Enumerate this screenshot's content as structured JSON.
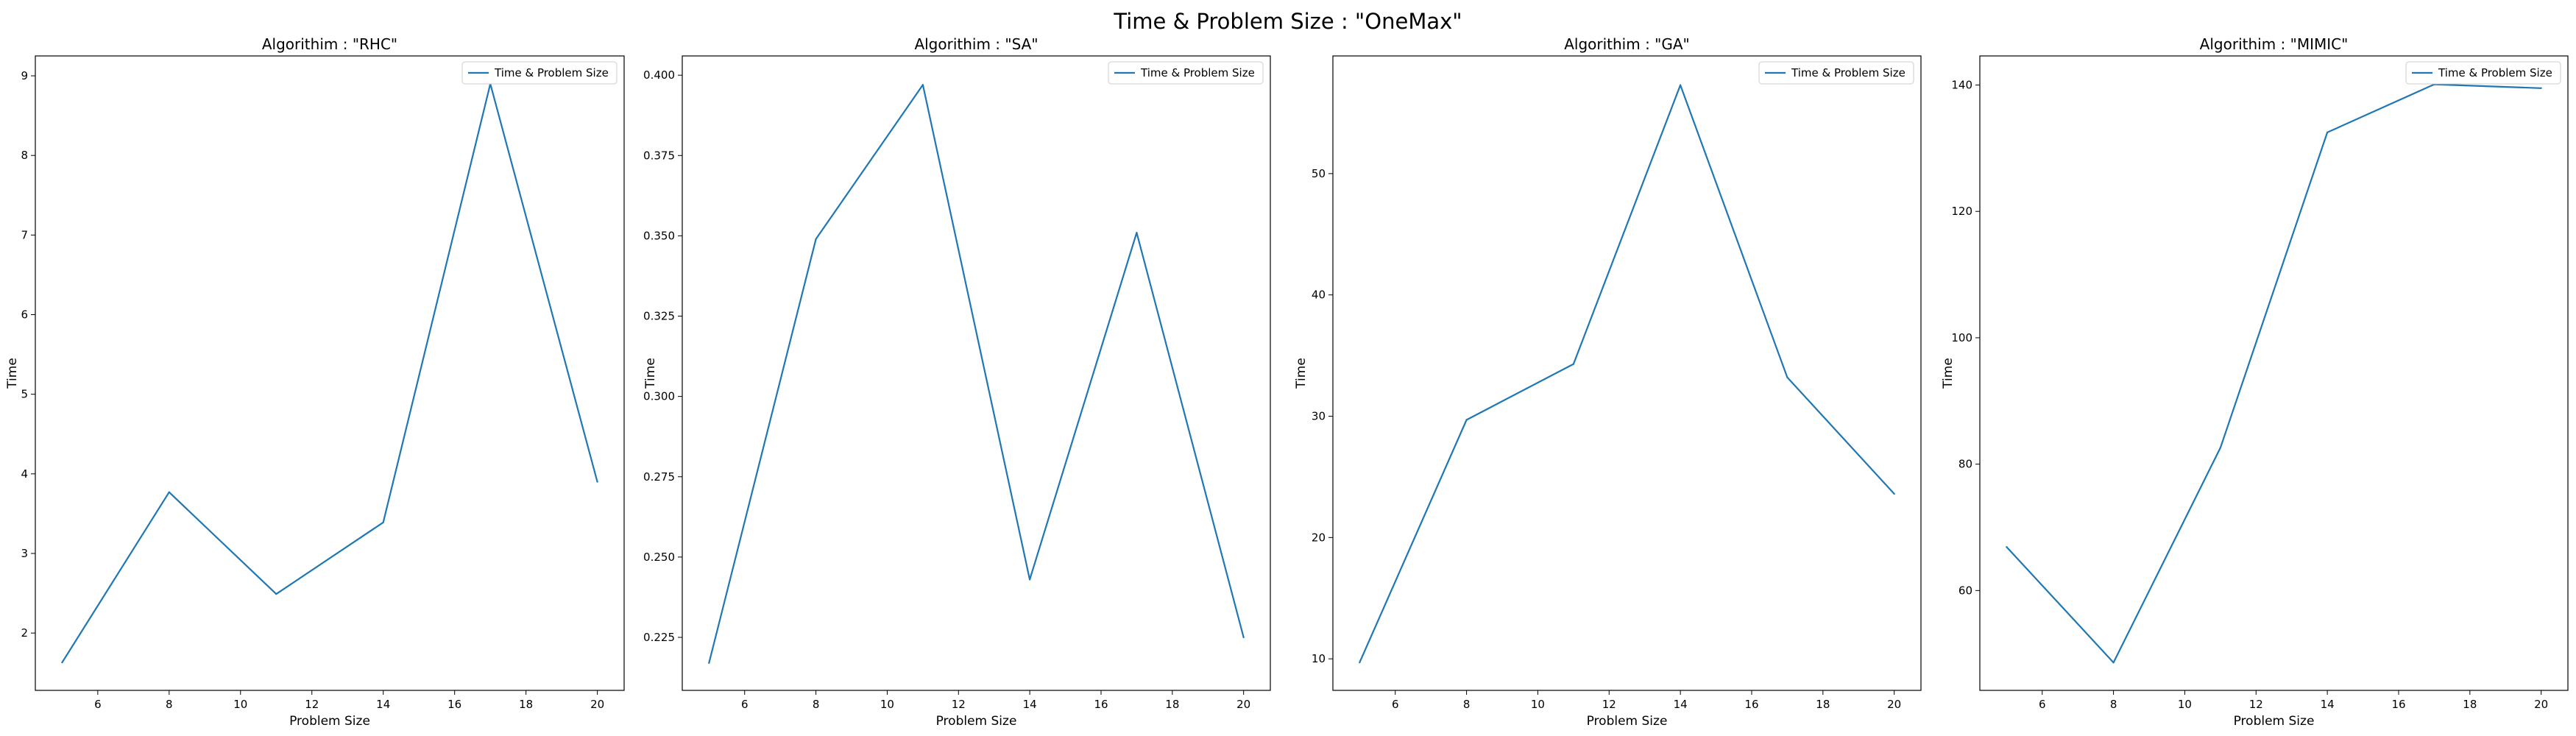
{
  "figure_title": "Time & Problem Size : \"OneMax\"",
  "line_color": "#1f77b4",
  "chart_data": [
    {
      "type": "line",
      "title": "Algorithim : \"RHC\"",
      "xlabel": "Problem Size",
      "ylabel": "Time",
      "legend": "top-right",
      "grid": false,
      "xlim": [
        4.25,
        20.75
      ],
      "ylim": [
        1.28,
        9.25
      ],
      "xticks": [
        6,
        8,
        10,
        12,
        14,
        16,
        18,
        20
      ],
      "yticks": [
        2,
        3,
        4,
        5,
        6,
        7,
        8,
        9
      ],
      "series": [
        {
          "name": "Time & Problem Size",
          "x": [
            5,
            8,
            11,
            14,
            17,
            20
          ],
          "y": [
            1.63,
            3.77,
            2.49,
            3.39,
            8.9,
            3.9
          ]
        }
      ]
    },
    {
      "type": "line",
      "title": "Algorithim : \"SA\"",
      "xlabel": "Problem Size",
      "ylabel": "Time",
      "legend": "top-right",
      "grid": false,
      "xlim": [
        4.25,
        20.75
      ],
      "ylim": [
        0.2085,
        0.406
      ],
      "xticks": [
        6,
        8,
        10,
        12,
        14,
        16,
        18,
        20
      ],
      "yticks": [
        0.225,
        0.25,
        0.275,
        0.3,
        0.325,
        0.35,
        0.375,
        0.4
      ],
      "ytick_labels": [
        "0.225",
        "0.250",
        "0.275",
        "0.300",
        "0.325",
        "0.350",
        "0.375",
        "0.400"
      ],
      "series": [
        {
          "name": "Time & Problem Size",
          "x": [
            5,
            8,
            11,
            14,
            17,
            20
          ],
          "y": [
            0.217,
            0.349,
            0.397,
            0.243,
            0.351,
            0.225
          ]
        }
      ]
    },
    {
      "type": "line",
      "title": "Algorithim : \"GA\"",
      "xlabel": "Problem Size",
      "ylabel": "Time",
      "legend": "top-right",
      "grid": false,
      "xlim": [
        4.25,
        20.75
      ],
      "ylim": [
        7.4,
        59.7
      ],
      "xticks": [
        6,
        8,
        10,
        12,
        14,
        16,
        18,
        20
      ],
      "yticks": [
        10,
        20,
        30,
        40,
        50
      ],
      "series": [
        {
          "name": "Time & Problem Size",
          "x": [
            5,
            8,
            11,
            14,
            17,
            20
          ],
          "y": [
            9.7,
            29.7,
            34.3,
            57.3,
            33.2,
            23.6
          ]
        }
      ]
    },
    {
      "type": "line",
      "title": "Algorithim : \"MIMIC\"",
      "xlabel": "Problem Size",
      "ylabel": "Time",
      "legend": "top-right",
      "grid": false,
      "xlim": [
        4.25,
        20.75
      ],
      "ylim": [
        44.2,
        144.6
      ],
      "xticks": [
        6,
        8,
        10,
        12,
        14,
        16,
        18,
        20
      ],
      "yticks": [
        60,
        80,
        100,
        120,
        140
      ],
      "series": [
        {
          "name": "Time & Problem Size",
          "x": [
            5,
            8,
            11,
            14,
            17,
            20
          ],
          "y": [
            66.9,
            48.6,
            82.6,
            132.5,
            140.1,
            139.5
          ]
        }
      ]
    }
  ]
}
